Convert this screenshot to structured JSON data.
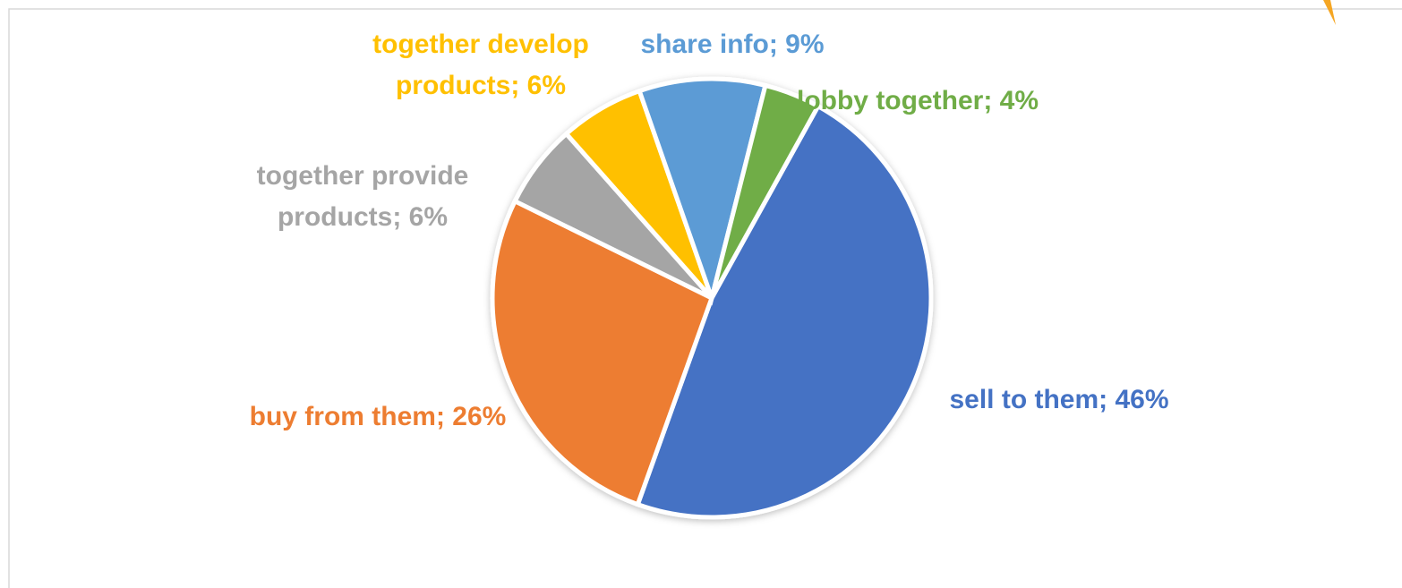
{
  "chart_data": {
    "type": "pie",
    "value_labels": [
      "sell to them; 46%",
      "buy from them; 26%",
      "together provide products; 6%",
      "together develop products; 6%",
      "share info; 9%",
      "lobby together; 4%"
    ],
    "values": [
      46,
      26,
      6,
      6,
      9,
      4
    ],
    "colors": [
      "#4472c4",
      "#ed7d31",
      "#a5a5a5",
      "#ffc000",
      "#5b9bd5",
      "#70ad47"
    ]
  }
}
